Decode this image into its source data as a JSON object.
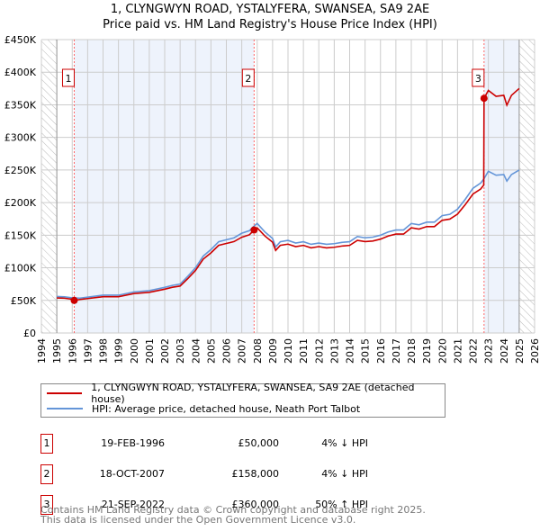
{
  "chart_data": {
    "type": "line",
    "title": "1, CLYNGWYN ROAD, YSTALYFERA, SWANSEA, SA9 2AE",
    "subtitle": "Price paid vs. HM Land Registry's House Price Index (HPI)",
    "xlim": [
      1994,
      2026
    ],
    "ylim": [
      0,
      450000
    ],
    "y_ticks": [
      0,
      50000,
      100000,
      150000,
      200000,
      250000,
      300000,
      350000,
      400000,
      450000
    ],
    "y_tick_labels": [
      "£0",
      "£50K",
      "£100K",
      "£150K",
      "£200K",
      "£250K",
      "£300K",
      "£350K",
      "£400K",
      "£450K"
    ],
    "x_tick_labels": [
      "1994",
      "1995",
      "1996",
      "1997",
      "1998",
      "1999",
      "2000",
      "2001",
      "2002",
      "2003",
      "2004",
      "2005",
      "2006",
      "2007",
      "2008",
      "2009",
      "2010",
      "2011",
      "2012",
      "2013",
      "2014",
      "2015",
      "2016",
      "2017",
      "2018",
      "2019",
      "2020",
      "2021",
      "2022",
      "2023",
      "2024",
      "2025",
      "2026"
    ],
    "data_range": [
      1995,
      2025
    ],
    "series": [
      {
        "name": "1, CLYNGWYN ROAD, YSTALYFERA, SWANSEA, SA9 2AE (detached house)",
        "color": "#cc0000",
        "points": [
          [
            1995,
            53800
          ],
          [
            1995.5,
            53300
          ],
          [
            1996,
            51800
          ],
          [
            1996.13,
            50000
          ],
          [
            1996.5,
            51400
          ],
          [
            1997,
            52800
          ],
          [
            1998,
            55700
          ],
          [
            1999,
            55700
          ],
          [
            2000,
            60500
          ],
          [
            2001,
            62400
          ],
          [
            2002,
            67200
          ],
          [
            2002.5,
            70100
          ],
          [
            2003,
            72000
          ],
          [
            2003.5,
            83500
          ],
          [
            2004,
            96000
          ],
          [
            2004.5,
            113300
          ],
          [
            2005,
            122900
          ],
          [
            2005.5,
            134400
          ],
          [
            2006,
            137300
          ],
          [
            2006.5,
            140200
          ],
          [
            2007,
            146900
          ],
          [
            2007.5,
            150700
          ],
          [
            2007.8,
            158000
          ],
          [
            2008,
            161300
          ],
          [
            2008.5,
            148800
          ],
          [
            2009,
            139200
          ],
          [
            2009.2,
            126700
          ],
          [
            2009.5,
            134400
          ],
          [
            2010,
            136300
          ],
          [
            2010.5,
            132500
          ],
          [
            2011,
            134400
          ],
          [
            2011.5,
            130600
          ],
          [
            2012,
            132500
          ],
          [
            2012.5,
            130600
          ],
          [
            2013,
            131500
          ],
          [
            2013.5,
            133400
          ],
          [
            2014,
            134400
          ],
          [
            2014.5,
            142100
          ],
          [
            2015,
            140200
          ],
          [
            2015.5,
            141100
          ],
          [
            2016,
            144000
          ],
          [
            2016.5,
            148800
          ],
          [
            2017,
            151700
          ],
          [
            2017.5,
            151700
          ],
          [
            2018,
            161300
          ],
          [
            2018.5,
            159400
          ],
          [
            2019,
            163200
          ],
          [
            2019.5,
            163200
          ],
          [
            2020,
            172800
          ],
          [
            2020.5,
            174700
          ],
          [
            2021,
            182400
          ],
          [
            2021.5,
            196800
          ],
          [
            2022,
            213100
          ],
          [
            2022.5,
            220800
          ],
          [
            2022.7,
            227000
          ],
          [
            2022.72,
            360000
          ],
          [
            2023,
            372000
          ],
          [
            2023.5,
            363000
          ],
          [
            2024,
            364500
          ],
          [
            2024.2,
            349500
          ],
          [
            2024.5,
            364500
          ],
          [
            2025,
            375000
          ]
        ]
      },
      {
        "name": "HPI: Average price, detached house, Neath Port Talbot",
        "color": "#6495d8",
        "points": [
          [
            1995,
            56000
          ],
          [
            1995.5,
            55500
          ],
          [
            1996,
            54000
          ],
          [
            1996.5,
            53500
          ],
          [
            1997,
            55000
          ],
          [
            1998,
            58000
          ],
          [
            1999,
            58000
          ],
          [
            2000,
            63000
          ],
          [
            2001,
            65000
          ],
          [
            2002,
            70000
          ],
          [
            2002.5,
            73000
          ],
          [
            2003,
            75000
          ],
          [
            2003.5,
            87000
          ],
          [
            2004,
            100000
          ],
          [
            2004.5,
            118000
          ],
          [
            2005,
            128000
          ],
          [
            2005.5,
            140000
          ],
          [
            2006,
            143000
          ],
          [
            2006.5,
            146000
          ],
          [
            2007,
            153000
          ],
          [
            2007.5,
            157000
          ],
          [
            2007.8,
            164000
          ],
          [
            2008,
            168000
          ],
          [
            2008.5,
            155000
          ],
          [
            2009,
            145000
          ],
          [
            2009.2,
            132000
          ],
          [
            2009.5,
            140000
          ],
          [
            2010,
            142000
          ],
          [
            2010.5,
            138000
          ],
          [
            2011,
            140000
          ],
          [
            2011.5,
            136000
          ],
          [
            2012,
            138000
          ],
          [
            2012.5,
            136000
          ],
          [
            2013,
            137000
          ],
          [
            2013.5,
            139000
          ],
          [
            2014,
            140000
          ],
          [
            2014.5,
            148000
          ],
          [
            2015,
            146000
          ],
          [
            2015.5,
            147000
          ],
          [
            2016,
            150000
          ],
          [
            2016.5,
            155000
          ],
          [
            2017,
            158000
          ],
          [
            2017.5,
            158000
          ],
          [
            2018,
            168000
          ],
          [
            2018.5,
            166000
          ],
          [
            2019,
            170000
          ],
          [
            2019.5,
            170000
          ],
          [
            2020,
            180000
          ],
          [
            2020.5,
            182000
          ],
          [
            2021,
            190000
          ],
          [
            2021.5,
            205000
          ],
          [
            2022,
            222000
          ],
          [
            2022.5,
            230000
          ],
          [
            2022.7,
            236000
          ],
          [
            2023,
            248000
          ],
          [
            2023.5,
            242000
          ],
          [
            2024,
            243000
          ],
          [
            2024.2,
            233000
          ],
          [
            2024.5,
            243000
          ],
          [
            2025,
            250000
          ]
        ]
      }
    ],
    "sales": [
      {
        "label": "1",
        "year": 1996.13,
        "value": 50000,
        "date": "19-FEB-1996",
        "price": "£50,000",
        "hpi": "4% ↓ HPI"
      },
      {
        "label": "2",
        "year": 2007.8,
        "value": 158000,
        "date": "18-OCT-2007",
        "price": "£158,000",
        "hpi": "4% ↓ HPI"
      },
      {
        "label": "3",
        "year": 2022.72,
        "value": 360000,
        "date": "21-SEP-2022",
        "price": "£360,000",
        "hpi": "50% ↑ HPI"
      }
    ]
  },
  "footer": {
    "line1": "Contains HM Land Registry data © Crown copyright and database right 2025.",
    "line2": "This data is licensed under the Open Government Licence v3.0."
  }
}
